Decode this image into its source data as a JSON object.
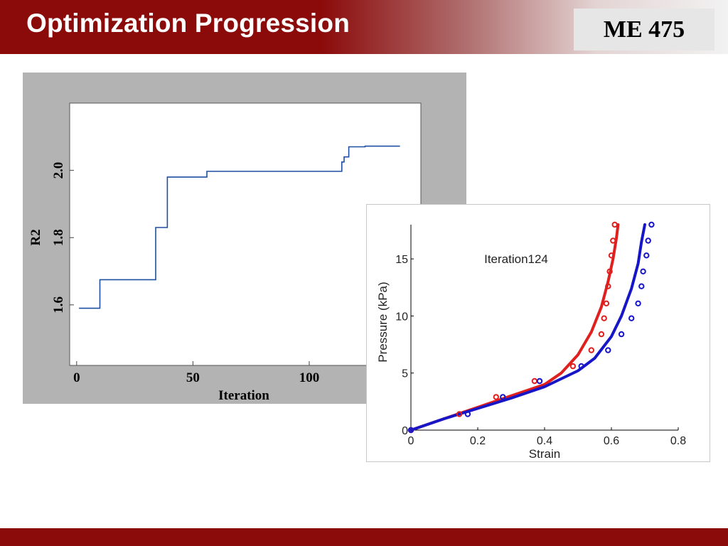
{
  "slide": {
    "title": "Optimization Progression",
    "course": "ME 475"
  },
  "colors": {
    "header_red": "#8b0a0a",
    "chart1_line": "#1f4fa0",
    "series_red": "#e0201f",
    "series_blue": "#1616c8"
  },
  "chart_data": [
    {
      "type": "line",
      "xlabel": "Iteration",
      "ylabel": "R2",
      "xlim": [
        -3,
        148
      ],
      "ylim": [
        1.42,
        2.2
      ],
      "xticks": [
        0,
        50,
        100
      ],
      "yticks": [
        1.6,
        1.8,
        2.0
      ],
      "grid": false,
      "series": [
        {
          "x": [
            1,
            10,
            10,
            34,
            34,
            39,
            39,
            56,
            56,
            114,
            114,
            115,
            115,
            117,
            117,
            124,
            124,
            139
          ],
          "y": [
            1.59,
            1.59,
            1.675,
            1.675,
            1.83,
            1.83,
            1.98,
            1.98,
            1.997,
            1.997,
            2.025,
            2.025,
            2.04,
            2.04,
            2.07,
            2.07,
            2.072,
            2.072
          ]
        }
      ]
    },
    {
      "type": "scatter",
      "title": "Iteration124",
      "xlabel": "Strain",
      "ylabel": "Pressure (kPa)",
      "xlim": [
        0,
        0.8
      ],
      "ylim": [
        0,
        18
      ],
      "xticks": [
        "0",
        "0.2",
        "0.4",
        "0.6",
        "0.8"
      ],
      "yticks": [
        "0",
        "5",
        "10",
        "15"
      ],
      "grid": false,
      "series": [
        {
          "color": "#e0201f",
          "points_x": [
            0.0,
            0.145,
            0.255,
            0.37,
            0.485,
            0.54,
            0.57,
            0.578,
            0.585,
            0.59,
            0.595,
            0.6,
            0.605,
            0.61
          ],
          "points_y": [
            0.0,
            1.4,
            2.9,
            4.3,
            5.6,
            7.0,
            8.4,
            9.8,
            11.1,
            12.6,
            13.9,
            15.3,
            16.6,
            18.0
          ],
          "fit_x": [
            0.0,
            0.1,
            0.2,
            0.3,
            0.4,
            0.45,
            0.5,
            0.54,
            0.57,
            0.59,
            0.605,
            0.615,
            0.62
          ],
          "fit_y": [
            0.0,
            1.0,
            2.0,
            3.0,
            4.0,
            5.0,
            6.6,
            8.6,
            10.8,
            13.0,
            15.0,
            16.8,
            18.0
          ]
        },
        {
          "color": "#1616c8",
          "points_x": [
            0.0,
            0.17,
            0.275,
            0.385,
            0.51,
            0.59,
            0.63,
            0.66,
            0.68,
            0.69,
            0.695,
            0.705,
            0.71,
            0.72
          ],
          "points_y": [
            0.0,
            1.4,
            2.9,
            4.3,
            5.6,
            7.0,
            8.4,
            9.8,
            11.1,
            12.6,
            13.9,
            15.3,
            16.6,
            18.0
          ],
          "fit_x": [
            0.0,
            0.1,
            0.2,
            0.3,
            0.4,
            0.5,
            0.55,
            0.6,
            0.63,
            0.66,
            0.68,
            0.69,
            0.7
          ],
          "fit_y": [
            0.0,
            1.0,
            1.9,
            2.8,
            3.8,
            5.2,
            6.3,
            8.2,
            10.0,
            12.4,
            14.6,
            16.5,
            18.0
          ]
        }
      ]
    }
  ]
}
